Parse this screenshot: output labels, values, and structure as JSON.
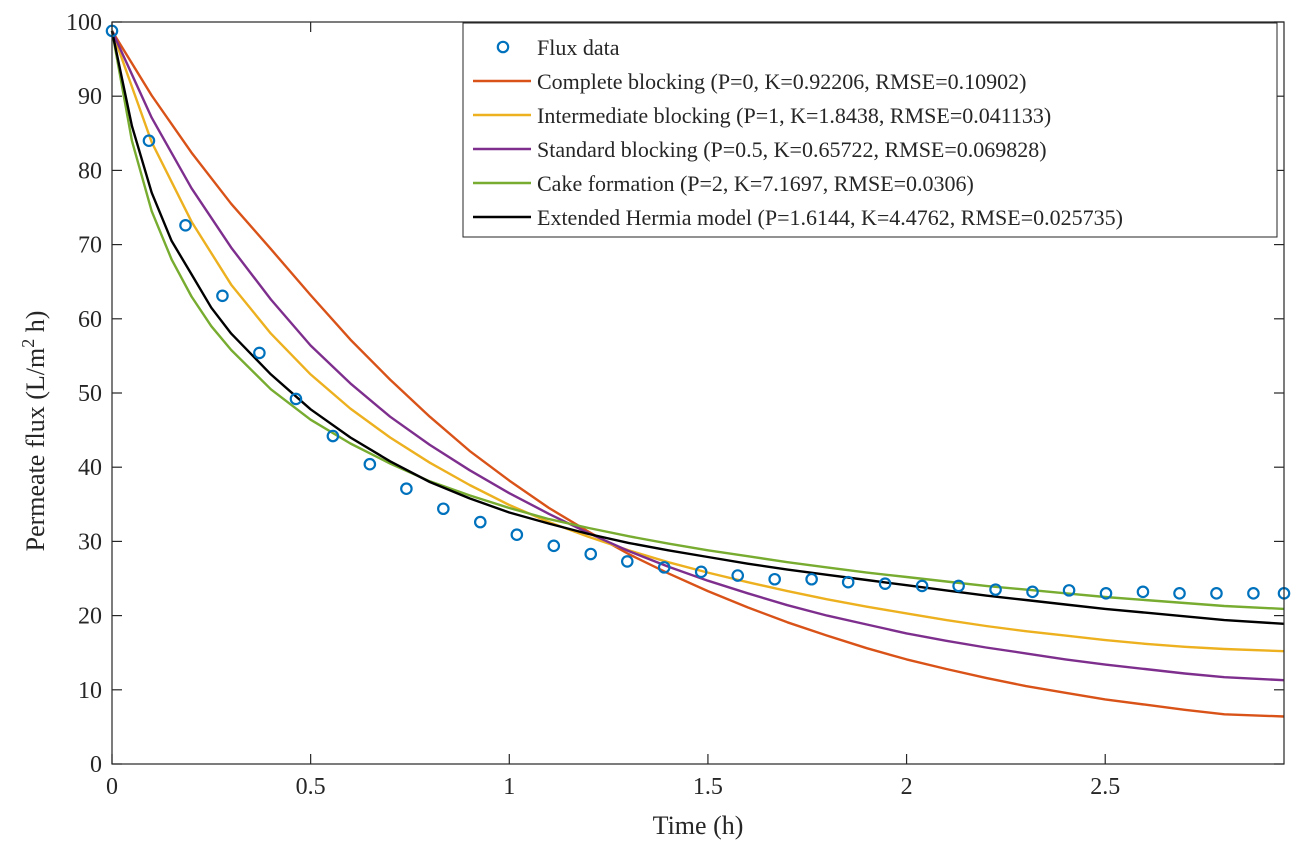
{
  "chart_data": {
    "type": "line",
    "title": "",
    "xlabel": "Time (h)",
    "ylabel": "Permeate flux (L/m",
    "ylabel_sup": "2",
    "ylabel_end": " h)",
    "xlim": [
      0,
      2.95
    ],
    "ylim": [
      0,
      100
    ],
    "xticks": [
      0,
      0.5,
      1,
      1.5,
      2,
      2.5
    ],
    "xtick_labels": [
      "0",
      "0.5",
      "1",
      "1.5",
      "2",
      "2.5"
    ],
    "yticks": [
      0,
      10,
      20,
      30,
      40,
      50,
      60,
      70,
      80,
      90,
      100
    ],
    "ytick_labels": [
      "0",
      "10",
      "20",
      "30",
      "40",
      "50",
      "60",
      "70",
      "80",
      "90",
      "100"
    ],
    "grid": false,
    "legend_position": "top-right",
    "marker_series": {
      "name": "Flux data",
      "color": "#0072BD",
      "x": [
        0,
        0.093,
        0.185,
        0.278,
        0.371,
        0.463,
        0.556,
        0.649,
        0.741,
        0.834,
        0.927,
        1.019,
        1.112,
        1.205,
        1.297,
        1.39,
        1.483,
        1.575,
        1.668,
        1.761,
        1.853,
        1.946,
        2.039,
        2.131,
        2.224,
        2.317,
        2.409,
        2.502,
        2.595,
        2.687,
        2.78,
        2.873,
        2.95
      ],
      "y": [
        98.8,
        84.0,
        72.6,
        63.1,
        55.4,
        49.2,
        44.2,
        40.4,
        37.1,
        34.4,
        32.6,
        30.9,
        29.4,
        28.3,
        27.3,
        26.5,
        25.9,
        25.4,
        24.9,
        24.9,
        24.5,
        24.3,
        24.0,
        24.0,
        23.5,
        23.2,
        23.4,
        23.0,
        23.2,
        23.0,
        23.0,
        23.0,
        23.0
      ]
    },
    "series": [
      {
        "name": "Complete blocking (P=0, K=0.92206, RMSE=0.10902)",
        "color": "#D95319",
        "x": [
          0,
          0.1,
          0.2,
          0.3,
          0.4,
          0.5,
          0.6,
          0.7,
          0.8,
          0.9,
          1.0,
          1.1,
          1.2,
          1.3,
          1.4,
          1.5,
          1.6,
          1.7,
          1.8,
          1.9,
          2.0,
          2.1,
          2.2,
          2.3,
          2.4,
          2.5,
          2.6,
          2.7,
          2.8,
          2.95
        ],
        "y": [
          98.8,
          90.1,
          82.4,
          75.5,
          69.4,
          63.2,
          57.2,
          51.8,
          46.8,
          42.2,
          38.2,
          34.5,
          31.3,
          28.3,
          25.7,
          23.3,
          21.1,
          19.1,
          17.3,
          15.6,
          14.1,
          12.8,
          11.6,
          10.5,
          9.6,
          8.7,
          8.0,
          7.3,
          6.7,
          6.4
        ]
      },
      {
        "name": "Intermediate blocking (P=1, K=1.8438, RMSE=0.041133)",
        "color": "#EDB120",
        "x": [
          0,
          0.1,
          0.2,
          0.3,
          0.4,
          0.5,
          0.6,
          0.7,
          0.8,
          0.9,
          1.0,
          1.1,
          1.2,
          1.3,
          1.4,
          1.5,
          1.6,
          1.7,
          1.8,
          1.9,
          2.0,
          2.1,
          2.2,
          2.3,
          2.4,
          2.5,
          2.6,
          2.7,
          2.8,
          2.95
        ],
        "y": [
          98.8,
          83.8,
          73.1,
          64.6,
          58.0,
          52.5,
          47.9,
          44.0,
          40.6,
          37.6,
          34.9,
          32.6,
          30.6,
          28.8,
          27.2,
          25.8,
          24.5,
          23.3,
          22.2,
          21.2,
          20.3,
          19.4,
          18.6,
          17.9,
          17.3,
          16.7,
          16.2,
          15.8,
          15.5,
          15.2
        ]
      },
      {
        "name": "Standard blocking (P=0.5, K=0.65722, RMSE=0.069828)",
        "color": "#7E2F8E",
        "x": [
          0,
          0.1,
          0.2,
          0.3,
          0.4,
          0.5,
          0.6,
          0.7,
          0.8,
          0.9,
          1.0,
          1.1,
          1.2,
          1.3,
          1.4,
          1.5,
          1.6,
          1.7,
          1.8,
          1.9,
          2.0,
          2.1,
          2.2,
          2.3,
          2.4,
          2.5,
          2.6,
          2.7,
          2.8,
          2.95
        ],
        "y": [
          98.8,
          87.1,
          77.6,
          69.6,
          62.6,
          56.4,
          51.3,
          46.8,
          43.0,
          39.6,
          36.5,
          33.7,
          31.1,
          28.7,
          26.6,
          24.7,
          23.0,
          21.4,
          20.0,
          18.8,
          17.6,
          16.6,
          15.7,
          14.9,
          14.1,
          13.4,
          12.8,
          12.2,
          11.7,
          11.3
        ]
      },
      {
        "name": "Cake formation (P=2, K=7.1697, RMSE=0.0306)",
        "color": "#77AC30",
        "x": [
          0,
          0.05,
          0.1,
          0.15,
          0.2,
          0.25,
          0.3,
          0.4,
          0.5,
          0.6,
          0.7,
          0.8,
          0.9,
          1.0,
          1.1,
          1.2,
          1.3,
          1.4,
          1.5,
          1.6,
          1.7,
          1.8,
          1.9,
          2.0,
          2.1,
          2.2,
          2.3,
          2.4,
          2.5,
          2.6,
          2.7,
          2.8,
          2.95
        ],
        "y": [
          98.8,
          84.0,
          74.5,
          68.0,
          63.0,
          59.0,
          55.8,
          50.5,
          46.4,
          43.2,
          40.5,
          38.1,
          36.2,
          34.5,
          33.0,
          31.8,
          30.7,
          29.7,
          28.8,
          28.0,
          27.2,
          26.5,
          25.8,
          25.2,
          24.6,
          24.0,
          23.5,
          23.0,
          22.5,
          22.1,
          21.7,
          21.3,
          20.9
        ]
      },
      {
        "name": "Extended Hermia model (P=1.6144, K=4.4762, RMSE=0.025735)",
        "color": "#000000",
        "x": [
          0,
          0.05,
          0.1,
          0.15,
          0.2,
          0.25,
          0.3,
          0.4,
          0.5,
          0.6,
          0.7,
          0.8,
          0.9,
          1.0,
          1.1,
          1.2,
          1.3,
          1.4,
          1.5,
          1.6,
          1.7,
          1.8,
          1.9,
          2.0,
          2.1,
          2.2,
          2.3,
          2.4,
          2.5,
          2.6,
          2.7,
          2.8,
          2.95
        ],
        "y": [
          98.8,
          86.0,
          77.0,
          70.5,
          66.0,
          61.5,
          58.0,
          52.5,
          47.8,
          44.0,
          40.8,
          38.0,
          35.8,
          33.9,
          32.4,
          31.0,
          29.8,
          28.8,
          27.9,
          27.0,
          26.2,
          25.5,
          24.8,
          24.1,
          23.4,
          22.7,
          22.1,
          21.5,
          20.9,
          20.4,
          19.9,
          19.4,
          18.9
        ]
      }
    ]
  }
}
